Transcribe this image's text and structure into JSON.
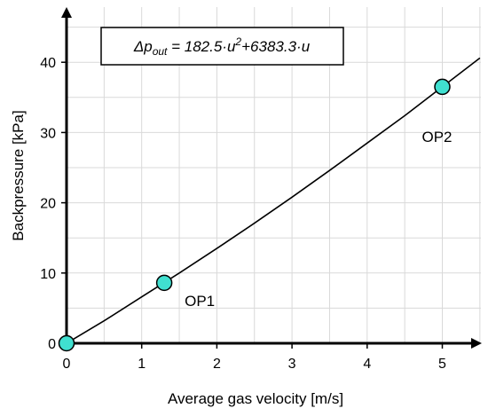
{
  "chart_data": {
    "type": "line",
    "xlabel": "Average gas velocity [m/s]",
    "ylabel": "Backpressure [kPa]",
    "xlim": [
      0,
      5.5
    ],
    "ylim": [
      0,
      45
    ],
    "x_ticks": [
      0,
      1,
      2,
      3,
      4,
      5
    ],
    "y_ticks": [
      0,
      10,
      20,
      30,
      40
    ],
    "x_tick_labels": [
      "0",
      "1",
      "2",
      "3",
      "4",
      "5"
    ],
    "y_tick_labels": [
      "0",
      "10",
      "20",
      "30",
      "40"
    ],
    "grid": true,
    "fit_equation": {
      "prefix": "Δp",
      "subscript": "out",
      "middle": " = 182.5·u",
      "superscript": "2",
      "suffix": "+6383.3·u"
    },
    "fit_coefficients": {
      "a": 182.5,
      "b": 6383.3
    },
    "series": [
      {
        "kind": "curve",
        "x": [
          0,
          0.5,
          1,
          1.5,
          2,
          2.5,
          3,
          3.5,
          4,
          4.5,
          5,
          5.5
        ],
        "y": [
          0,
          3.2,
          6.6,
          10.0,
          13.5,
          17.1,
          20.8,
          24.6,
          28.5,
          32.4,
          36.5,
          40.6
        ]
      },
      {
        "kind": "points",
        "points": [
          {
            "x": 0,
            "y": 0,
            "label": ""
          },
          {
            "x": 1.3,
            "y": 8.6,
            "label": "OP1"
          },
          {
            "x": 5.0,
            "y": 36.5,
            "label": "OP2"
          }
        ]
      }
    ],
    "colors": {
      "marker_fill": "#40e0d0",
      "marker_stroke": "#000000",
      "line": "#000000",
      "grid": "#d9d9d9"
    }
  }
}
